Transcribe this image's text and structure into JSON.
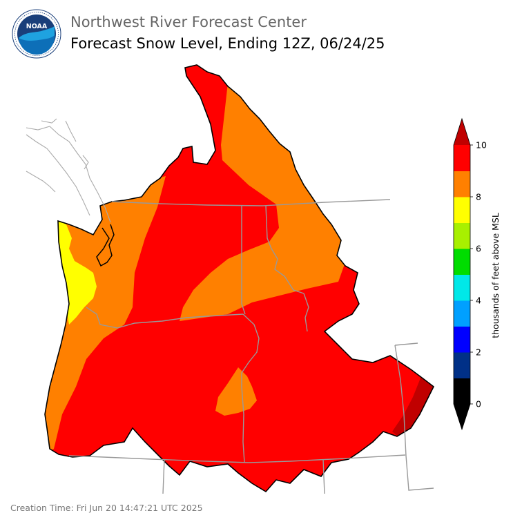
{
  "header": {
    "org": "Northwest River Forecast Center",
    "product": "Forecast Snow Level, Ending 12Z, 06/24/25",
    "logo_text": "NOAA"
  },
  "legend": {
    "unit_label": "thousands of feet above MSL",
    "ticks": [
      "0",
      "2",
      "4",
      "6",
      "8",
      "10"
    ],
    "colors": [
      "#000000",
      "#003087",
      "#0000ff",
      "#00a0ff",
      "#00e8e8",
      "#00dd00",
      "#a8f000",
      "#ffff00",
      "#ff8000",
      "#ff0000",
      "#c00000"
    ]
  },
  "map": {
    "fill_colors": {
      "yellow": "#ffff00",
      "orange": "#ff8000",
      "red": "#ff0000",
      "dark_red": "#c00000"
    },
    "zones": [
      {
        "name": "coastal-yellow",
        "range_kft": "7-8"
      },
      {
        "name": "western-orange",
        "range_kft": "8-9"
      },
      {
        "name": "northern-orange",
        "range_kft": "8-9"
      },
      {
        "name": "central-orange",
        "range_kft": "8-9"
      },
      {
        "name": "south-orange",
        "range_kft": "8-9"
      },
      {
        "name": "interior-red",
        "range_kft": "9-10"
      },
      {
        "name": "southeast-darkred",
        "range_kft": ">10"
      }
    ]
  },
  "footer": {
    "creation_time": "Creation Time: Fri Jun 20 14:47:21 UTC 2025"
  }
}
